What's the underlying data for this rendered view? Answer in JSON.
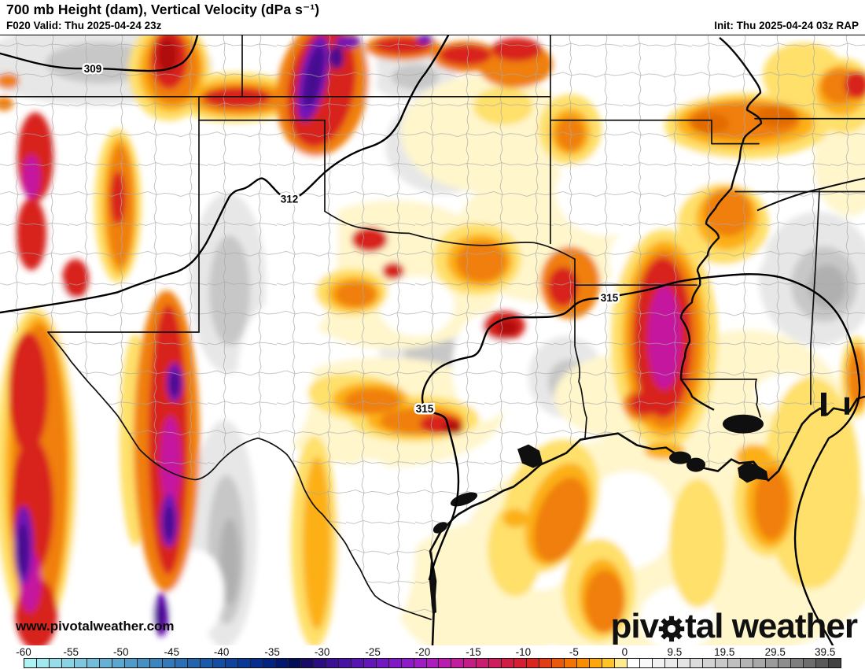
{
  "header": {
    "title": "700 mb Height (dam), Vertical Velocity (dPa s⁻¹)",
    "forecast": "F020 Valid: Thu 2025-04-24 23z",
    "init": "Init: Thu 2025-04-24 03z RAP"
  },
  "map": {
    "watermark": "www.pivotalweather.com",
    "logo_left": "piv",
    "logo_right": "tal weather",
    "contour_labels": [
      {
        "value": "309"
      },
      {
        "value": "312"
      },
      {
        "value": "315"
      },
      {
        "value": "315"
      }
    ],
    "palette": {
      "deep_purple": "#44088e",
      "purple": "#7013b6",
      "magenta": "#c519a0",
      "red": "#d8231a",
      "orange": "#f07f0a",
      "amber": "#fcb018",
      "yellow": "#fee06a",
      "pale_yellow": "#fff6cc",
      "white": "#ffffff",
      "gray_light": "#e7e7e7",
      "gray_mid": "#c7c7c7",
      "boundary": "#111111"
    }
  },
  "colorbar": {
    "ticks": [
      {
        "label": "-60",
        "pos": 0.0
      },
      {
        "label": "-55",
        "pos": 5.8
      },
      {
        "label": "-50",
        "pos": 11.9
      },
      {
        "label": "-45",
        "pos": 18.1
      },
      {
        "label": "-40",
        "pos": 24.2
      },
      {
        "label": "-35",
        "pos": 30.4
      },
      {
        "label": "-30",
        "pos": 36.5
      },
      {
        "label": "-25",
        "pos": 42.7
      },
      {
        "label": "-20",
        "pos": 48.8
      },
      {
        "label": "-15",
        "pos": 55.0
      },
      {
        "label": "-10",
        "pos": 61.1
      },
      {
        "label": "-5",
        "pos": 67.3
      },
      {
        "label": "0",
        "pos": 73.5
      },
      {
        "label": "9.5",
        "pos": 79.6
      },
      {
        "label": "19.5",
        "pos": 85.7
      },
      {
        "label": "29.5",
        "pos": 91.9
      },
      {
        "label": "39.5",
        "pos": 98.0
      }
    ],
    "cells": [
      "#aef2f4",
      "#a3e8ee",
      "#97dde9",
      "#8bd2e3",
      "#80c7de",
      "#74bcd8",
      "#68b1d3",
      "#5da6cd",
      "#529bc8",
      "#4890c2",
      "#3e85bd",
      "#357ab7",
      "#2c6fb2",
      "#2464ac",
      "#1c59a7",
      "#154ea1",
      "#0f439c",
      "#0a3896",
      "#062d8e",
      "#032380",
      "#02186e",
      "#020e55",
      "#180b66",
      "#2a0e80",
      "#391192",
      "#4713a2",
      "#5515ae",
      "#6317b8",
      "#7119c0",
      "#7f1ac6",
      "#8e1bc8",
      "#9d1cc4",
      "#ac1dbc",
      "#b91dae",
      "#c11e9c",
      "#c51d86",
      "#c91d70",
      "#cd1d5a",
      "#d11d44",
      "#d51e33",
      "#d92621",
      "#e13c15",
      "#ea580b",
      "#f37405",
      "#f98e05",
      "#fda70c",
      "#fec327",
      "#fdeb90",
      "#ffffff",
      "#f9f9f9",
      "#f2f2f2",
      "#ebebeb",
      "#e4e4e4",
      "#dcdcdc",
      "#d3d3d3",
      "#c9c9c9",
      "#bfbfbf",
      "#b4b4b4",
      "#a8a8a8",
      "#9b9b9b",
      "#8d8d8d",
      "#7e7e7e",
      "#6d6d6d",
      "#595959",
      "#424242"
    ]
  }
}
